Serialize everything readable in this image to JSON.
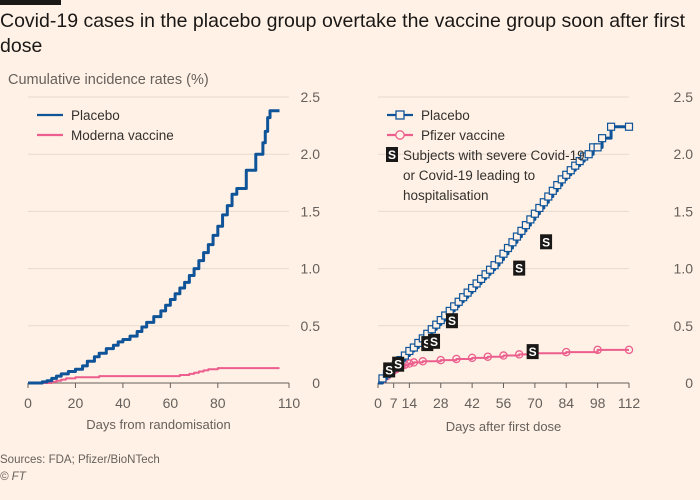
{
  "title": "Covid-19 cases in the placebo group overtake the vaccine group soon after first dose",
  "subtitle": "Cumulative incidence rates (%)",
  "source": "Sources: FDA; Pfizer/BioNTech",
  "credit": "© FT",
  "colors": {
    "placebo": "#0f5499",
    "vaccine": "#eb5e8d",
    "grid": "#e6d9ce",
    "axis": "#66605c"
  },
  "chart_data": [
    {
      "type": "line",
      "xlabel": "Days from randomisation",
      "ylabel": "",
      "xlim": [
        0,
        110
      ],
      "ylim": [
        0,
        2.5
      ],
      "xticks": [
        0,
        20,
        40,
        60,
        80,
        110
      ],
      "yticks": [
        0,
        0.5,
        1.0,
        1.5,
        2.0,
        2.5
      ],
      "ytick_labels": [
        "0",
        "0.5",
        "1.0",
        "1.5",
        "2.0",
        "2.5"
      ],
      "grid": true,
      "legend": "top-left",
      "series": [
        {
          "name": "Placebo",
          "color": "#0f5499",
          "step": true,
          "x": [
            0,
            4,
            6,
            8,
            10,
            12,
            14,
            17,
            20,
            23,
            25,
            28,
            30,
            33,
            36,
            38,
            40,
            43,
            46,
            48,
            50,
            53,
            56,
            58,
            60,
            62,
            64,
            66,
            68,
            70,
            72,
            74,
            76,
            78,
            80,
            82,
            84,
            86,
            88,
            90,
            92,
            94,
            96,
            98,
            99,
            100,
            101,
            102,
            106
          ],
          "y": [
            0,
            0,
            0.01,
            0.02,
            0.04,
            0.06,
            0.08,
            0.1,
            0.12,
            0.15,
            0.19,
            0.23,
            0.26,
            0.3,
            0.33,
            0.36,
            0.38,
            0.41,
            0.45,
            0.49,
            0.53,
            0.58,
            0.63,
            0.68,
            0.73,
            0.78,
            0.83,
            0.88,
            0.94,
            1.0,
            1.07,
            1.14,
            1.21,
            1.29,
            1.37,
            1.47,
            1.55,
            1.65,
            1.7,
            1.7,
            1.86,
            1.86,
            2.0,
            2.0,
            2.1,
            2.2,
            2.32,
            2.38,
            2.38
          ]
        },
        {
          "name": "Moderna vaccine",
          "color": "#eb5e8d",
          "step": true,
          "x": [
            0,
            8,
            10,
            12,
            14,
            16,
            18,
            20,
            25,
            30,
            40,
            50,
            60,
            64,
            66,
            68,
            70,
            72,
            74,
            76,
            80,
            90,
            100,
            106
          ],
          "y": [
            0,
            0,
            0.01,
            0.02,
            0.03,
            0.04,
            0.04,
            0.05,
            0.05,
            0.06,
            0.06,
            0.06,
            0.06,
            0.07,
            0.07,
            0.08,
            0.09,
            0.1,
            0.11,
            0.12,
            0.13,
            0.13,
            0.13,
            0.13
          ]
        }
      ]
    },
    {
      "type": "line",
      "xlabel": "Days after first dose",
      "ylabel": "",
      "xlim": [
        0,
        112
      ],
      "ylim": [
        0,
        2.5
      ],
      "xticks": [
        0,
        7,
        14,
        28,
        42,
        56,
        70,
        84,
        98,
        112
      ],
      "yticks": [
        0,
        0.5,
        1.0,
        1.5,
        2.0,
        2.5
      ],
      "ytick_labels": [
        "0",
        "0.5",
        "1.0",
        "1.5",
        "2.0",
        "2.5"
      ],
      "grid": true,
      "legend": "top-left",
      "severe_note": "Subjects with severe Covid-19 or Covid-19 leading to hospitalisation",
      "severe_note_lines": [
        "Subjects with severe Covid-19",
        "or Covid-19 leading to",
        "hospitalisation"
      ],
      "severe_marker": "S",
      "series": [
        {
          "name": "Placebo",
          "color": "#0f5499",
          "marker": "square",
          "step": true,
          "x": [
            0,
            2,
            4,
            6,
            8,
            10,
            12,
            14,
            16,
            18,
            20,
            22,
            24,
            26,
            28,
            30,
            32,
            34,
            36,
            38,
            40,
            42,
            44,
            46,
            48,
            50,
            52,
            54,
            56,
            58,
            60,
            62,
            64,
            66,
            68,
            70,
            72,
            74,
            76,
            78,
            80,
            82,
            84,
            86,
            88,
            90,
            92,
            94,
            96,
            98,
            100,
            104,
            112
          ],
          "y": [
            0,
            0.04,
            0.08,
            0.12,
            0.16,
            0.2,
            0.24,
            0.28,
            0.31,
            0.35,
            0.39,
            0.43,
            0.47,
            0.51,
            0.55,
            0.59,
            0.63,
            0.67,
            0.71,
            0.75,
            0.79,
            0.83,
            0.87,
            0.91,
            0.95,
            0.99,
            1.03,
            1.08,
            1.13,
            1.18,
            1.23,
            1.28,
            1.33,
            1.38,
            1.43,
            1.48,
            1.53,
            1.58,
            1.63,
            1.68,
            1.73,
            1.78,
            1.82,
            1.86,
            1.9,
            1.94,
            1.98,
            2.0,
            2.06,
            2.06,
            2.14,
            2.24,
            2.24
          ]
        },
        {
          "name": "Pfizer vaccine",
          "color": "#eb5e8d",
          "marker": "circle",
          "step": true,
          "x": [
            0,
            2,
            4,
            6,
            8,
            10,
            12,
            14,
            16,
            20,
            28,
            35,
            42,
            49,
            56,
            63,
            70,
            84,
            98,
            112
          ],
          "y": [
            0,
            0.03,
            0.06,
            0.09,
            0.12,
            0.14,
            0.16,
            0.17,
            0.18,
            0.19,
            0.2,
            0.21,
            0.22,
            0.23,
            0.24,
            0.25,
            0.26,
            0.27,
            0.29,
            0.29
          ]
        }
      ],
      "severe_points": [
        {
          "x": 5,
          "y": 0.11
        },
        {
          "x": 9,
          "y": 0.16
        },
        {
          "x": 22,
          "y": 0.34
        },
        {
          "x": 25,
          "y": 0.36
        },
        {
          "x": 33,
          "y": 0.54
        },
        {
          "x": 63,
          "y": 1.0
        },
        {
          "x": 75,
          "y": 1.23
        },
        {
          "x": 69,
          "y": 0.27
        }
      ]
    }
  ]
}
